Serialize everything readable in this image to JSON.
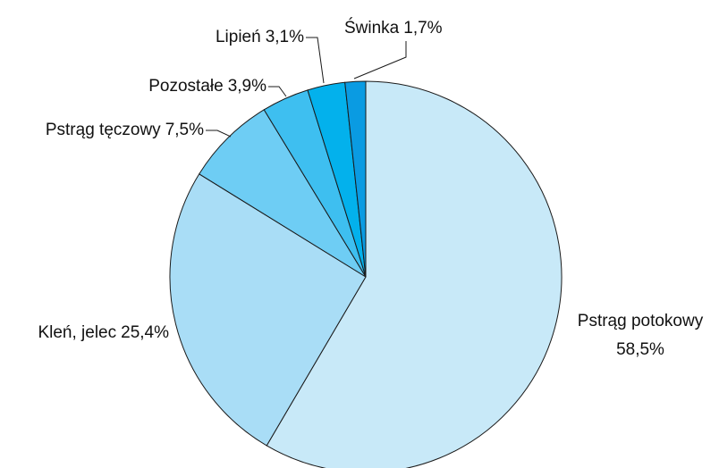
{
  "chart_data": {
    "type": "pie",
    "categories": [
      "Pstrąg potokowy",
      "Kleń, jelec",
      "Pstrąg tęczowy",
      "Pozostałe",
      "Lipień",
      "Świnka"
    ],
    "values": [
      58.5,
      25.4,
      7.5,
      3.9,
      3.1,
      1.7
    ],
    "value_labels": [
      "58,5%",
      "25,4%",
      "7,5%",
      "3,9%",
      "3,1%",
      "1,7%"
    ],
    "colors": [
      "#c8e9f8",
      "#a9ddf6",
      "#6ecdf4",
      "#3ebff0",
      "#03b1ec",
      "#0a9be2"
    ]
  }
}
